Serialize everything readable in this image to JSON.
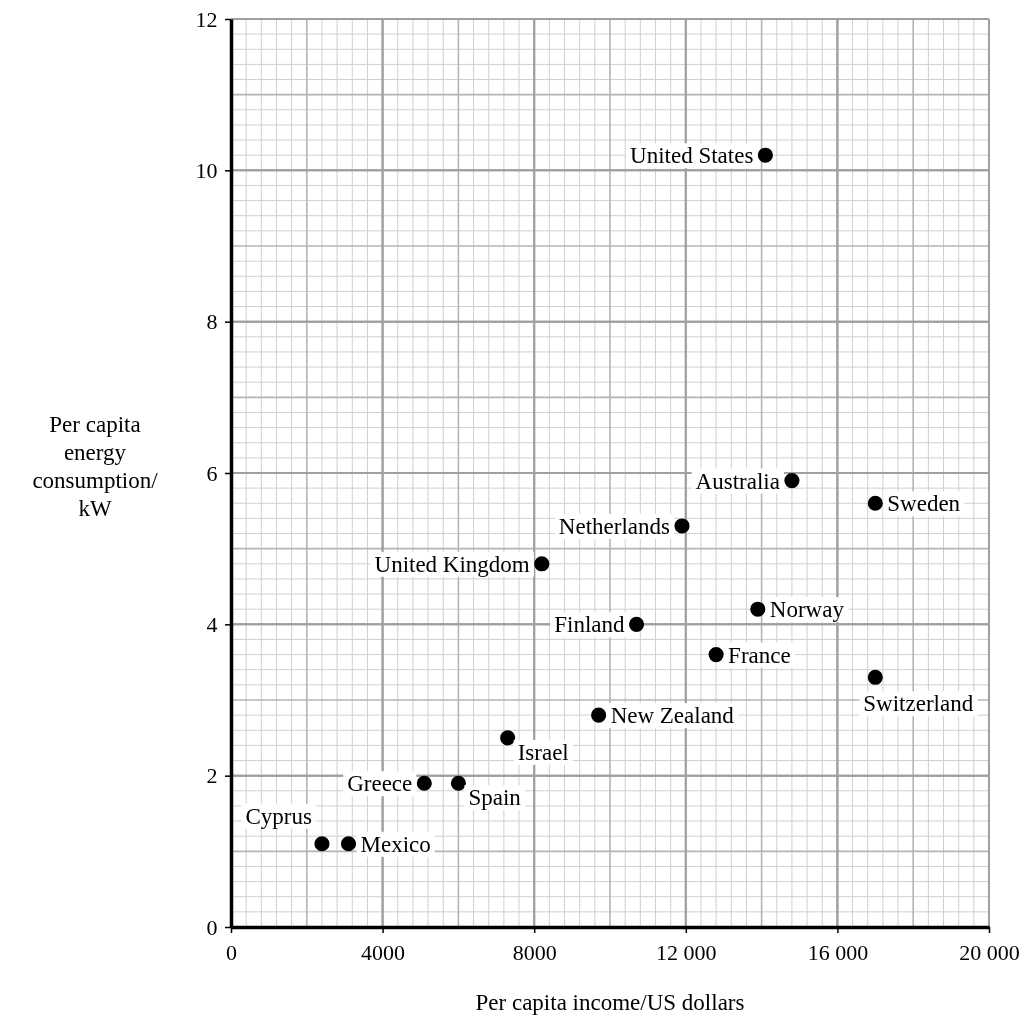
{
  "chart_data": {
    "type": "scatter",
    "xlabel": "Per capita income/US dollars",
    "ylabel": "Per capita\nenergy\nconsumption/\nkW",
    "x": [
      14100,
      14800,
      17000,
      11900,
      8200,
      10700,
      13900,
      12800,
      17000,
      9700,
      7300,
      5100,
      6000,
      2400,
      3100
    ],
    "values": [
      10.2,
      5.9,
      5.6,
      5.3,
      4.8,
      4.0,
      4.2,
      3.6,
      3.3,
      2.8,
      2.5,
      1.9,
      1.9,
      1.1,
      1.1
    ],
    "color": "#000000",
    "marker": "circle",
    "xlim": [
      0,
      20000
    ],
    "xticks": [
      0,
      4000,
      8000,
      {
        "value": 12000,
        "label": "12 000"
      },
      {
        "value": 16000,
        "label": "16 000"
      },
      {
        "value": 20000,
        "label": "20 000"
      }
    ],
    "ylim": [
      0,
      12
    ],
    "yticks": [
      0,
      2,
      4,
      6,
      8,
      10,
      12
    ],
    "grid": true,
    "annotations": [
      {
        "text": "United States",
        "x": 14100,
        "y": 10.2
      },
      {
        "text": "Australia",
        "x": 14800,
        "y": 5.9
      },
      {
        "text": "Sweden",
        "x": 17000,
        "y": 5.6
      },
      {
        "text": "Netherlands",
        "x": 11900,
        "y": 5.3
      },
      {
        "text": "United Kingdom",
        "x": 8200,
        "y": 4.8
      },
      {
        "text": "Finland",
        "x": 10700,
        "y": 4.0
      },
      {
        "text": "Norway",
        "x": 13900,
        "y": 4.2
      },
      {
        "text": "France",
        "x": 12800,
        "y": 3.6
      },
      {
        "text": "Switzerland",
        "x": 17000,
        "y": 3.3
      },
      {
        "text": "New Zealand",
        "x": 9700,
        "y": 2.8
      },
      {
        "text": "Israel",
        "x": 7300,
        "y": 2.5
      },
      {
        "text": "Greece",
        "x": 5100,
        "y": 1.9
      },
      {
        "text": "Spain",
        "x": 6000,
        "y": 1.9
      },
      {
        "text": "Cyprus",
        "x": 2400,
        "y": 1.1
      },
      {
        "text": "Mexico",
        "x": 3100,
        "y": 1.1
      }
    ]
  }
}
